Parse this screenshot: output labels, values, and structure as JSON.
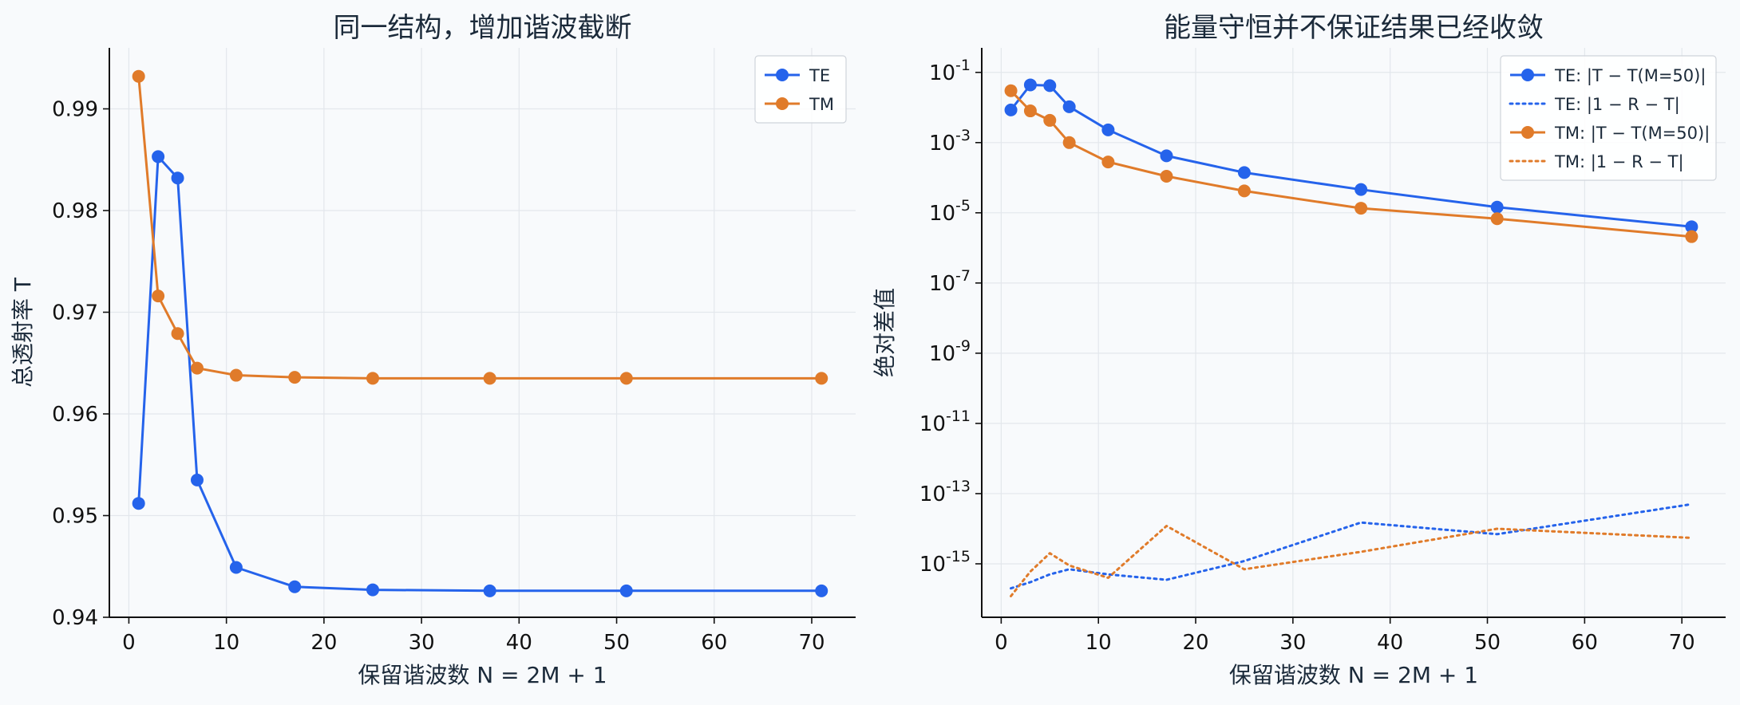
{
  "chart_data": [
    {
      "type": "line",
      "title": "同一结构，增加谐波截断",
      "xlabel": "保留谐波数 N = 2M + 1",
      "ylabel": "总透射率 T",
      "xlim": [
        -2,
        74.5
      ],
      "ylim": [
        0.94,
        0.996
      ],
      "xticks": [
        0,
        10,
        20,
        30,
        40,
        50,
        60,
        70
      ],
      "yticks": [
        0.94,
        0.95,
        0.96,
        0.97,
        0.98,
        0.99
      ],
      "grid": true,
      "legend": "top-right",
      "x": [
        1,
        3,
        5,
        7,
        11,
        17,
        25,
        37,
        51,
        71
      ],
      "series": [
        {
          "name": "TE",
          "color": "#2563eb",
          "style": "solid",
          "marker": true,
          "values": [
            0.9512,
            0.9853,
            0.9832,
            0.9535,
            0.9449,
            0.943,
            0.9427,
            0.9426,
            0.9426,
            0.9426
          ]
        },
        {
          "name": "TM",
          "color": "#e07b2a",
          "style": "solid",
          "marker": true,
          "values": [
            0.9932,
            0.9716,
            0.9679,
            0.9645,
            0.9638,
            0.9636,
            0.9635,
            0.9635,
            0.9635,
            0.9635
          ]
        }
      ]
    },
    {
      "type": "line",
      "title": "能量守恒并不保证结果已经收敛",
      "xlabel": "保留谐波数 N = 2M + 1",
      "ylabel": "绝对差值",
      "yscale": "log",
      "xlim": [
        -2,
        74.5
      ],
      "ylim": [
        3e-17,
        0.5
      ],
      "xticks": [
        0,
        10,
        20,
        30,
        40,
        50,
        60,
        70
      ],
      "yticks": [
        -15,
        -13,
        -11,
        -9,
        -7,
        -5,
        -3,
        -1
      ],
      "grid": true,
      "legend": "top-right",
      "x": [
        1,
        3,
        5,
        7,
        11,
        17,
        25,
        37,
        51,
        71
      ],
      "series": [
        {
          "name": "TE: |T − T(M=50)|",
          "color": "#2563eb",
          "style": "solid",
          "marker": true,
          "values": [
            0.0085,
            0.044,
            0.042,
            0.0105,
            0.0023,
            0.00042,
            0.00014,
            4.6e-05,
            1.45e-05,
            4e-06
          ]
        },
        {
          "name": "TE: |1 − R − T|",
          "color": "#2563eb",
          "style": "dotted",
          "marker": false,
          "values": [
            2e-16,
            3e-16,
            5e-16,
            7e-16,
            5e-16,
            3.5e-16,
            1.2e-15,
            1.5e-14,
            7e-15,
            5e-14
          ]
        },
        {
          "name": "TM: |T − T(M=50)|",
          "color": "#e07b2a",
          "style": "solid",
          "marker": true,
          "values": [
            0.03,
            0.008,
            0.0043,
            0.001,
            0.00028,
            0.00011,
            4.2e-05,
            1.35e-05,
            6.8e-06,
            2.1e-06
          ]
        },
        {
          "name": "TM: |1 − R − T|",
          "color": "#e07b2a",
          "style": "dotted",
          "marker": false,
          "values": [
            1.2e-16,
            6e-16,
            2e-15,
            9e-16,
            4e-16,
            1.2e-14,
            7e-16,
            2.2e-15,
            1e-14,
            5.5e-15
          ]
        }
      ]
    }
  ]
}
